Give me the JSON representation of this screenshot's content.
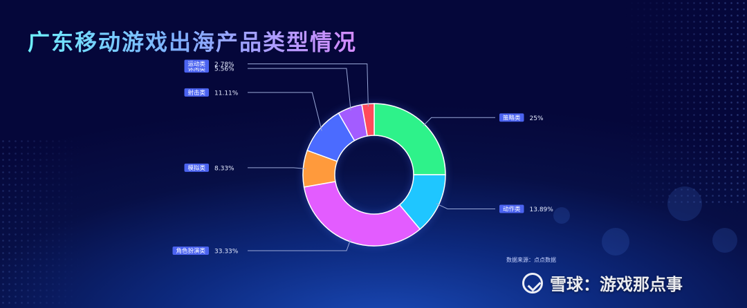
{
  "title": "广东移动游戏出海产品类型情况",
  "source": "数据来源：点点数据",
  "watermark": "雪球：游戏那点事",
  "chart_data": {
    "type": "pie",
    "style": "donut",
    "slices": [
      {
        "label": "策略类",
        "value": 25,
        "display": "25%",
        "color": "#2ef28a"
      },
      {
        "label": "动作类",
        "value": 13.89,
        "display": "13.89%",
        "color": "#1fc6ff"
      },
      {
        "label": "角色扮演类",
        "value": 33.33,
        "display": "33.33%",
        "color": "#e35cff"
      },
      {
        "label": "模拟类",
        "value": 8.33,
        "display": "8.33%",
        "color": "#ff9a3c"
      },
      {
        "label": "射击类",
        "value": 11.11,
        "display": "11.11%",
        "color": "#4b6bff"
      },
      {
        "label": "休闲类",
        "value": 5.56,
        "display": "5.56%",
        "color": "#a35cff"
      },
      {
        "label": "运动类",
        "value": 2.78,
        "display": "2.78%",
        "color": "#ff4b5c"
      }
    ]
  }
}
